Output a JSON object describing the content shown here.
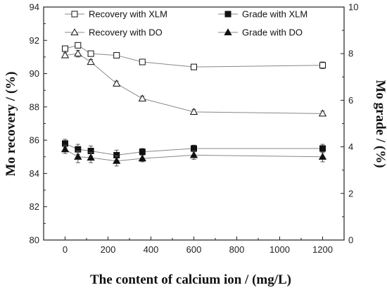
{
  "chart_data": {
    "type": "line",
    "title": "",
    "xlabel": "The content of calcium ion / (mg/L)",
    "ylabel_left": "Mo recovery / (%)",
    "ylabel_right": "Mo grade / (%)",
    "xlim": [
      -100,
      1300
    ],
    "ylim_left": [
      80,
      94
    ],
    "ylim_right": [
      0,
      10
    ],
    "x_ticks": [
      0,
      200,
      400,
      600,
      800,
      1000,
      1200
    ],
    "y_ticks_left": [
      80,
      82,
      84,
      86,
      88,
      90,
      92,
      94
    ],
    "y_ticks_right": [
      0,
      2,
      4,
      6,
      8,
      10
    ],
    "grid": false,
    "legend_position": "top",
    "x": [
      0,
      60,
      120,
      240,
      360,
      600,
      1200
    ],
    "series": [
      {
        "name": "Recovery with XLM",
        "axis": "left",
        "marker": "open-square",
        "values": [
          91.5,
          91.7,
          91.2,
          91.1,
          90.7,
          90.4,
          90.5
        ],
        "errors": [
          0.15,
          0.15,
          0.15,
          0.15,
          0.15,
          0.1,
          0.2
        ]
      },
      {
        "name": "Grade with XLM",
        "axis": "left",
        "marker": "filled-square",
        "values": [
          85.8,
          85.45,
          85.35,
          85.1,
          85.3,
          85.5,
          85.5
        ],
        "errors": [
          0.25,
          0.3,
          0.3,
          0.3,
          0.2,
          0.2,
          0.25
        ]
      },
      {
        "name": "Recovery with DO",
        "axis": "left",
        "marker": "open-triangle",
        "values": [
          91.1,
          91.2,
          90.7,
          89.4,
          88.5,
          87.7,
          87.6
        ],
        "errors": [
          0.15,
          0.2,
          0.15,
          0.15,
          0.15,
          0.15,
          0.15
        ]
      },
      {
        "name": "Grade with DO",
        "axis": "left",
        "marker": "filled-triangle",
        "values": [
          85.45,
          85.0,
          84.95,
          84.75,
          84.9,
          85.1,
          85.0
        ],
        "errors": [
          0.25,
          0.35,
          0.3,
          0.3,
          0.2,
          0.25,
          0.3
        ]
      }
    ],
    "line_color": "#888888",
    "marker_color": "#111111"
  }
}
